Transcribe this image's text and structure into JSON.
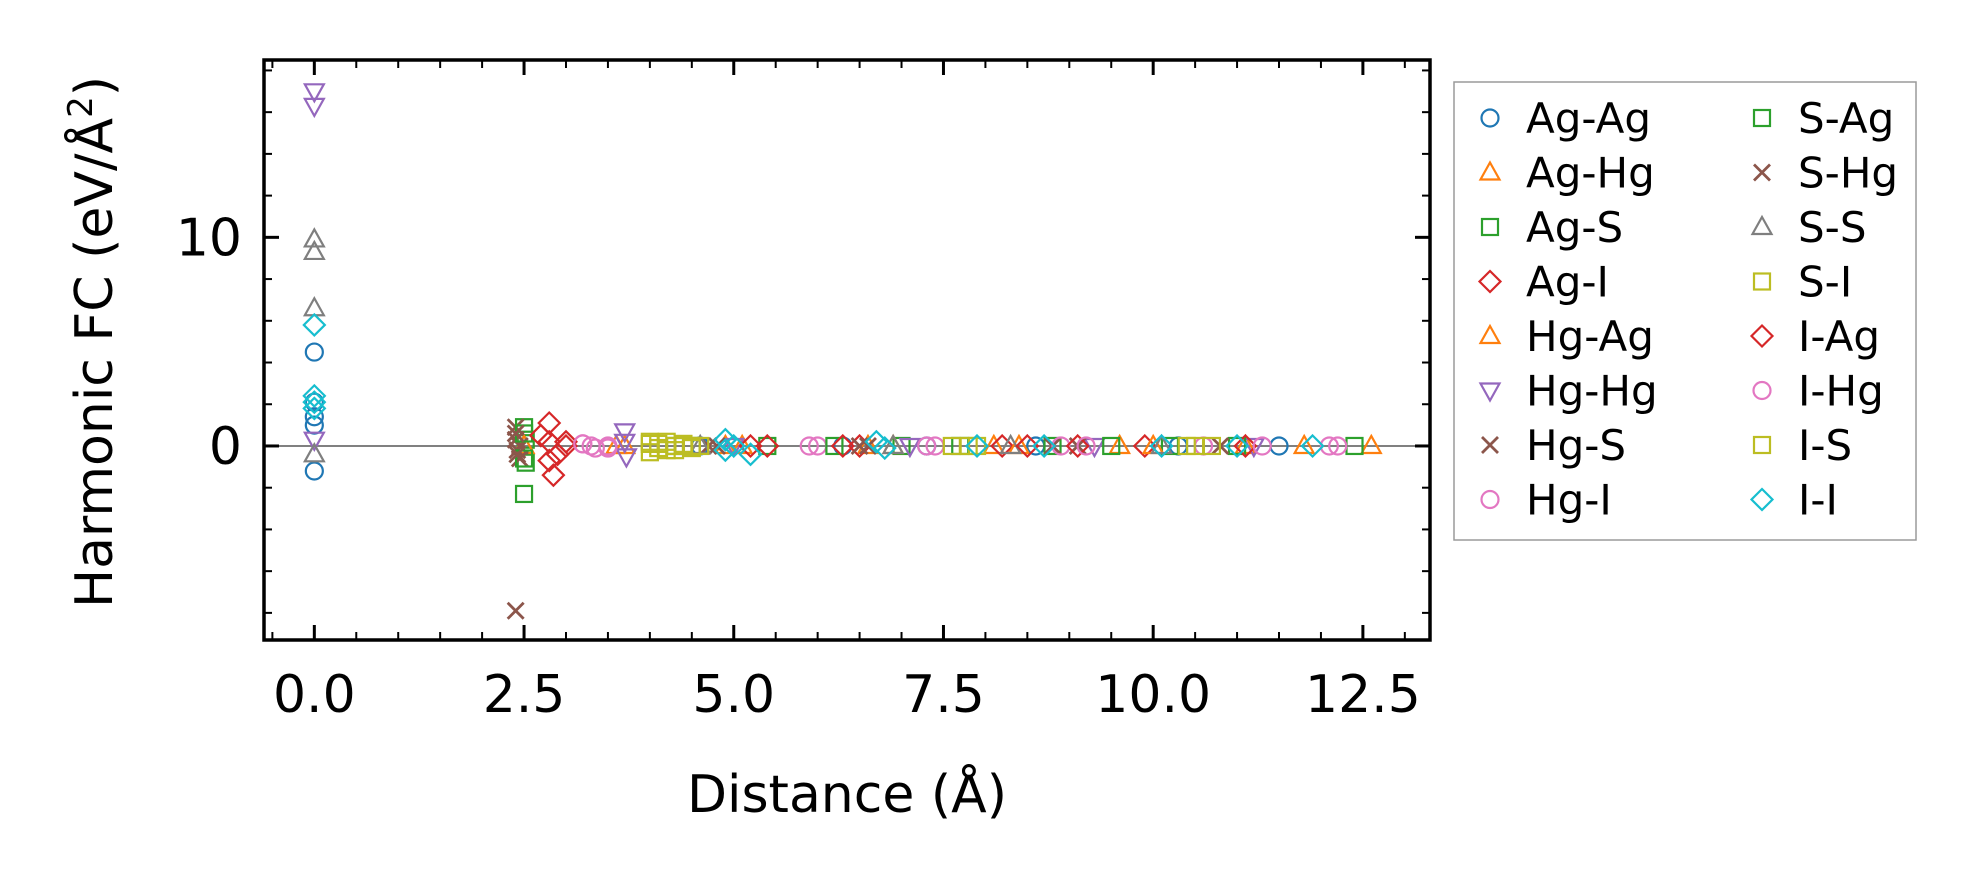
{
  "chart_data": {
    "type": "scatter",
    "xlabel": "Distance (Å)",
    "ylabel_prefix": "Harmonic FC (eV/Å",
    "ylabel_sup": "2",
    "ylabel_suffix": ")",
    "xlim": [
      -0.6,
      13.3
    ],
    "ylim": [
      -9.3,
      18.5
    ],
    "xticks": [
      0.0,
      2.5,
      5.0,
      7.5,
      10.0,
      12.5
    ],
    "xtick_labels": [
      "0.0",
      "2.5",
      "5.0",
      "7.5",
      "10.0",
      "12.5"
    ],
    "yticks": [
      0,
      10
    ],
    "ytick_labels": [
      "0",
      "10"
    ],
    "legend_position": "outside-right",
    "series": [
      {
        "name": "Ag-Ag",
        "marker": "circle",
        "color": "#1f77b4",
        "x": [
          0,
          0,
          0,
          0,
          0,
          4.6,
          6.3,
          7.3,
          8.6,
          10.3,
          11.5
        ],
        "y": [
          4.5,
          1.4,
          1.0,
          -1.2,
          2.1,
          0,
          0,
          0,
          0,
          0,
          0
        ]
      },
      {
        "name": "Ag-Hg",
        "marker": "triangle-up",
        "color": "#ff7f0e",
        "x": [
          2.5,
          3.6,
          4.9,
          6.6,
          8.1,
          9.6,
          11.1,
          12.6
        ],
        "y": [
          0,
          0,
          0,
          0,
          0,
          0,
          0,
          0
        ]
      },
      {
        "name": "Ag-S",
        "marker": "square",
        "color": "#2ca02c",
        "x": [
          2.5,
          2.52,
          2.5,
          2.52,
          4.3,
          5.4,
          7.0,
          8.8,
          10.2,
          12.4
        ],
        "y": [
          0.9,
          0.3,
          -2.3,
          -0.8,
          0,
          0,
          0,
          0,
          0,
          0
        ]
      },
      {
        "name": "Ag-I",
        "marker": "diamond",
        "color": "#d62728",
        "x": [
          2.8,
          2.8,
          2.8,
          2.85,
          3.0,
          5.4,
          6.5,
          8.2,
          9.9
        ],
        "y": [
          1.1,
          0.2,
          -0.7,
          -1.4,
          0,
          0,
          0,
          0,
          0
        ]
      },
      {
        "name": "Hg-Ag",
        "marker": "triangle-up",
        "color": "#ff7f0e",
        "x": [
          2.5,
          3.7,
          5.1,
          6.9,
          8.4,
          10.0,
          11.8
        ],
        "y": [
          0,
          0,
          0,
          0,
          0,
          0,
          0
        ]
      },
      {
        "name": "Hg-Hg",
        "marker": "triangle-down",
        "color": "#9467bd",
        "x": [
          0,
          0,
          0,
          3.7,
          3.7,
          3.72,
          5.0,
          7.1,
          9.3,
          11.2
        ],
        "y": [
          17.0,
          16.3,
          0.3,
          0.7,
          0.2,
          -0.5,
          0,
          0,
          0,
          0
        ]
      },
      {
        "name": "Hg-S",
        "marker": "x",
        "color": "#8c564b",
        "x": [
          2.4,
          2.4,
          2.4,
          2.42,
          2.45,
          2.45,
          4.7,
          6.6,
          8.8
        ],
        "y": [
          -7.9,
          0.9,
          0.3,
          -0.2,
          -0.6,
          0,
          0,
          0,
          0
        ]
      },
      {
        "name": "Hg-I",
        "marker": "circle",
        "color": "#e377c2",
        "x": [
          3.2,
          3.3,
          3.5,
          6.0,
          7.4,
          8.9,
          10.6,
          12.2
        ],
        "y": [
          0.1,
          0,
          -0.1,
          0,
          0,
          0,
          0,
          0
        ]
      },
      {
        "name": "S-Ag",
        "marker": "square",
        "color": "#2ca02c",
        "x": [
          2.5,
          2.5,
          4.5,
          6.2,
          7.7,
          9.5,
          11.0
        ],
        "y": [
          0.6,
          -0.6,
          0,
          0,
          0,
          0,
          0
        ]
      },
      {
        "name": "S-Hg",
        "marker": "x",
        "color": "#8c564b",
        "x": [
          2.4,
          2.42,
          4.8,
          6.5,
          9.1,
          10.8
        ],
        "y": [
          0.6,
          -0.4,
          0,
          0,
          0,
          0
        ]
      },
      {
        "name": "S-S",
        "marker": "triangle-up",
        "color": "#7f7f7f",
        "x": [
          0,
          0,
          0,
          0,
          4.6,
          6.9,
          8.3,
          10.1
        ],
        "y": [
          9.9,
          9.3,
          6.6,
          -0.4,
          0,
          0,
          0,
          0
        ]
      },
      {
        "name": "S-I",
        "marker": "square",
        "color": "#bcbd22",
        "x": [
          4.0,
          4.0,
          4.1,
          4.2,
          4.3,
          4.4,
          4.5,
          4.6,
          7.6,
          7.9,
          10.4,
          10.7
        ],
        "y": [
          0.2,
          -0.3,
          0.1,
          -0.2,
          0,
          0.1,
          -0.1,
          0,
          0,
          0,
          0,
          0
        ]
      },
      {
        "name": "I-Ag",
        "marker": "diamond",
        "color": "#d62728",
        "x": [
          2.7,
          2.9,
          3.0,
          5.2,
          6.3,
          8.5,
          9.1,
          11.1
        ],
        "y": [
          0.5,
          -0.4,
          0.2,
          0,
          0,
          0,
          0,
          0
        ]
      },
      {
        "name": "I-Hg",
        "marker": "circle",
        "color": "#e377c2",
        "x": [
          3.2,
          3.35,
          3.5,
          5.9,
          7.3,
          9.2,
          11.3,
          12.1
        ],
        "y": [
          0.1,
          -0.1,
          0,
          0,
          0,
          0,
          0,
          0
        ]
      },
      {
        "name": "I-S",
        "marker": "square",
        "color": "#bcbd22",
        "x": [
          4.0,
          4.1,
          4.2,
          4.3,
          4.5,
          7.8,
          10.5
        ],
        "y": [
          0.1,
          -0.1,
          0.2,
          -0.2,
          0,
          0,
          0
        ]
      },
      {
        "name": "I-I",
        "marker": "diamond",
        "color": "#17becf",
        "x": [
          0,
          0,
          0,
          0,
          4.9,
          4.9,
          5.0,
          5.2,
          6.7,
          6.8,
          7.9,
          8.7,
          10.1,
          11.0,
          11.9
        ],
        "y": [
          5.8,
          2.4,
          2.1,
          1.8,
          0.3,
          -0.2,
          0,
          -0.4,
          0.2,
          -0.1,
          0,
          0,
          0,
          0,
          0
        ]
      }
    ]
  }
}
